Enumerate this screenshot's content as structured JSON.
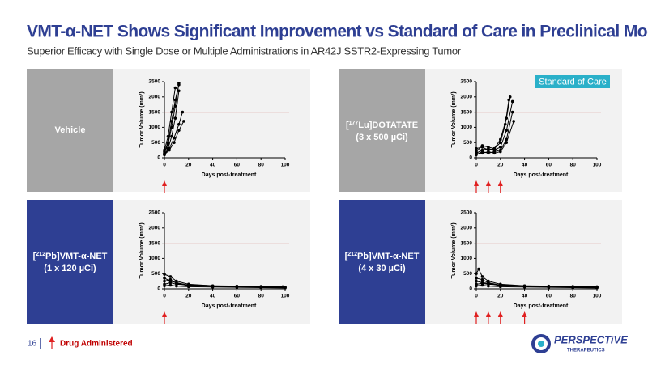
{
  "header": {
    "title": "VMT-α-NET Shows Significant Improvement vs Standard of Care in Preclinical Models",
    "subtitle": "Superior Efficacy with Single Dose or Multiple Administrations in AR42J SSTR2-Expressing Tumor"
  },
  "footer": {
    "page": "16",
    "legend": "Drug Administered",
    "logo": "PERSPECTiVE",
    "logo_sub": "THERAPEUTICS"
  },
  "chart_data": [
    {
      "type": "line",
      "panel_label": {
        "line1": [
          "Vehicle"
        ]
      },
      "panel_color": "#a6a6a6",
      "y_label": "Tumor Volume (mm³)",
      "x_label": "Days post-treatment",
      "xlim": [
        0,
        100
      ],
      "xticks": [
        0,
        20,
        40,
        60,
        80,
        100
      ],
      "ylim": [
        0,
        2500
      ],
      "yticks": [
        0,
        500,
        1000,
        1500,
        2000,
        2500
      ],
      "reference_line": 1500,
      "dose_days": [
        0
      ],
      "series": [
        {
          "color": "#000000",
          "x": [
            0,
            3,
            6,
            9,
            12
          ],
          "values": [
            150,
            450,
            1000,
            1700,
            2450
          ]
        },
        {
          "color": "#000000",
          "x": [
            0,
            3,
            6,
            9,
            12
          ],
          "values": [
            100,
            300,
            700,
            1300,
            2200
          ]
        },
        {
          "color": "#000000",
          "x": [
            0,
            3,
            6,
            9,
            12
          ],
          "values": [
            200,
            500,
            1200,
            1900,
            2400
          ]
        },
        {
          "color": "#000000",
          "x": [
            0,
            4,
            8,
            12,
            16
          ],
          "values": [
            100,
            250,
            500,
            900,
            1200
          ]
        },
        {
          "color": "#000000",
          "x": [
            0,
            3,
            6,
            9
          ],
          "values": [
            250,
            700,
            1500,
            2300
          ]
        },
        {
          "color": "#000000",
          "x": [
            0,
            4,
            8,
            12,
            15
          ],
          "values": [
            120,
            300,
            650,
            1100,
            1500
          ]
        }
      ]
    },
    {
      "type": "line",
      "panel_label": {
        "line1": [
          "[",
          {
            "sup": "177"
          },
          "Lu]DOTATATE"
        ],
        "line2": "(3 x 500 µCi)"
      },
      "panel_color": "#a6a6a6",
      "annotation": "Standard of Care",
      "y_label": "Tumor Volume (mm³)",
      "x_label": "Days post-treatment",
      "xlim": [
        0,
        100
      ],
      "xticks": [
        0,
        20,
        40,
        60,
        80,
        100
      ],
      "ylim": [
        0,
        2500
      ],
      "yticks": [
        0,
        500,
        1000,
        1500,
        2000,
        2500
      ],
      "reference_line": 1500,
      "dose_days": [
        0,
        10,
        20
      ],
      "series": [
        {
          "color": "#000000",
          "x": [
            0,
            5,
            10,
            15,
            20,
            25,
            30
          ],
          "values": [
            150,
            250,
            300,
            250,
            350,
            900,
            1850
          ]
        },
        {
          "color": "#000000",
          "x": [
            0,
            5,
            10,
            15,
            20,
            25,
            28
          ],
          "values": [
            200,
            400,
            350,
            300,
            600,
            1300,
            2000
          ]
        },
        {
          "color": "#000000",
          "x": [
            0,
            5,
            10,
            15,
            20,
            25,
            30
          ],
          "values": [
            100,
            200,
            150,
            200,
            250,
            600,
            1500
          ]
        },
        {
          "color": "#000000",
          "x": [
            0,
            5,
            10,
            15,
            20,
            24,
            27
          ],
          "values": [
            300,
            350,
            250,
            300,
            500,
            1100,
            1900
          ]
        },
        {
          "color": "#000000",
          "x": [
            0,
            5,
            10,
            15,
            20,
            25,
            31
          ],
          "values": [
            120,
            150,
            200,
            150,
            200,
            500,
            1200
          ]
        }
      ]
    },
    {
      "type": "line",
      "panel_label": {
        "line1": [
          "[",
          {
            "sup": "212"
          },
          "Pb]VMT-α-NET"
        ],
        "line2": "(1 x 120 µCi)"
      },
      "panel_color": "#2e3f93",
      "y_label": "Tumor Volume (mm³)",
      "x_label": "Days post-treatment",
      "xlim": [
        0,
        100
      ],
      "xticks": [
        0,
        20,
        40,
        60,
        80,
        100
      ],
      "ylim": [
        0,
        2500
      ],
      "yticks": [
        0,
        500,
        1000,
        1500,
        2000,
        2500
      ],
      "reference_line": 1500,
      "dose_days": [
        0
      ],
      "series": [
        {
          "color": "#000000",
          "x": [
            0,
            5,
            10,
            20,
            40,
            60,
            80,
            100
          ],
          "values": [
            480,
            400,
            250,
            150,
            100,
            80,
            70,
            60
          ]
        },
        {
          "color": "#000000",
          "x": [
            0,
            5,
            10,
            20,
            40,
            60,
            80,
            100
          ],
          "values": [
            350,
            250,
            200,
            120,
            90,
            70,
            60,
            50
          ]
        },
        {
          "color": "#000000",
          "x": [
            0,
            5,
            10,
            20,
            40,
            60,
            80,
            100
          ],
          "values": [
            250,
            300,
            180,
            100,
            80,
            60,
            50,
            40
          ]
        },
        {
          "color": "#000000",
          "x": [
            0,
            5,
            10,
            20,
            40,
            60,
            80,
            98
          ],
          "values": [
            150,
            200,
            150,
            130,
            100,
            90,
            80,
            70
          ]
        },
        {
          "color": "#000000",
          "x": [
            0,
            5,
            10,
            20,
            40,
            60,
            80,
            100
          ],
          "values": [
            100,
            120,
            90,
            70,
            60,
            50,
            40,
            30
          ]
        }
      ]
    },
    {
      "type": "line",
      "panel_label": {
        "line1": [
          "[",
          {
            "sup": "212"
          },
          "Pb]VMT-α-NET"
        ],
        "line2": "(4 x 30 µCi)"
      },
      "panel_color": "#2e3f93",
      "y_label": "Tumor Volume (mm³)",
      "x_label": "Days post-treatment",
      "xlim": [
        0,
        100
      ],
      "xticks": [
        0,
        20,
        40,
        60,
        80,
        100
      ],
      "ylim": [
        0,
        2500
      ],
      "yticks": [
        0,
        500,
        1000,
        1500,
        2000,
        2500
      ],
      "reference_line": 1500,
      "dose_days": [
        0,
        10,
        20,
        40
      ],
      "series": [
        {
          "color": "#000000",
          "x": [
            0,
            2,
            5,
            10,
            20,
            40,
            60,
            80,
            100
          ],
          "values": [
            500,
            650,
            400,
            250,
            150,
            100,
            80,
            70,
            60
          ]
        },
        {
          "color": "#000000",
          "x": [
            0,
            5,
            10,
            20,
            40,
            60,
            80,
            100
          ],
          "values": [
            350,
            300,
            200,
            120,
            90,
            70,
            60,
            50
          ]
        },
        {
          "color": "#000000",
          "x": [
            0,
            5,
            10,
            20,
            40,
            60,
            80,
            100
          ],
          "values": [
            250,
            200,
            180,
            100,
            80,
            60,
            50,
            40
          ]
        },
        {
          "color": "#000000",
          "x": [
            0,
            5,
            10,
            20,
            40,
            60,
            80,
            100
          ],
          "values": [
            150,
            180,
            150,
            130,
            100,
            90,
            80,
            70
          ]
        },
        {
          "color": "#000000",
          "x": [
            0,
            5,
            10,
            20,
            40,
            60,
            80,
            100
          ],
          "values": [
            100,
            120,
            90,
            70,
            60,
            50,
            40,
            30
          ]
        }
      ]
    }
  ]
}
